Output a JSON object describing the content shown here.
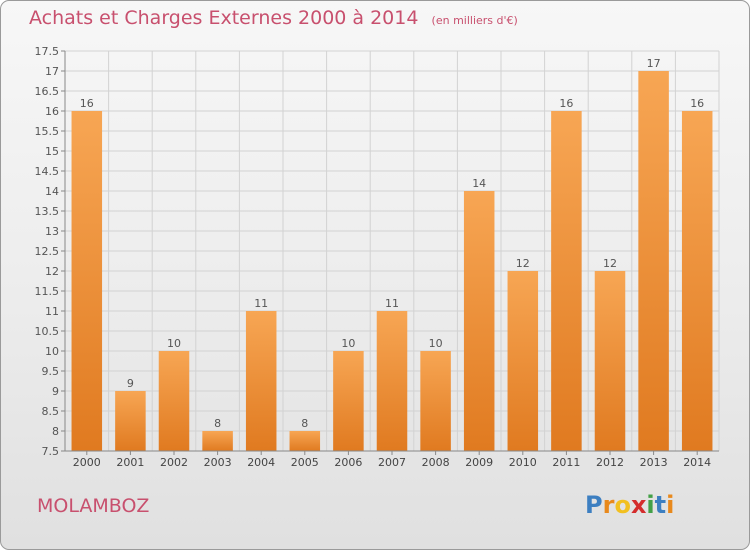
{
  "chart_data": {
    "type": "bar",
    "title": "Achats et Charges Externes 2000 à 2014",
    "subtitle": "(en milliers d'€)",
    "categories": [
      "2000",
      "2001",
      "2002",
      "2003",
      "2004",
      "2005",
      "2006",
      "2007",
      "2008",
      "2009",
      "2010",
      "2011",
      "2012",
      "2013",
      "2014"
    ],
    "values": [
      16,
      9,
      10,
      8,
      11,
      8,
      10,
      11,
      10,
      14,
      12,
      16,
      12,
      17,
      16
    ],
    "data_labels": [
      "16",
      "9",
      "10",
      "8",
      "11",
      "8",
      "10",
      "11",
      "10",
      "14",
      "12",
      "16",
      "12",
      "17",
      "16"
    ],
    "ylim": [
      7.5,
      17.5
    ],
    "ytick_step": 0.5,
    "ytick_labels": [
      "7.5",
      "8",
      "8.5",
      "9",
      "9.5",
      "10",
      "10.5",
      "11",
      "11.5",
      "12",
      "12.5",
      "13",
      "13.5",
      "14",
      "14.5",
      "15",
      "15.5",
      "16",
      "16.5",
      "17",
      "17.5"
    ],
    "grid": true,
    "legend": "none",
    "bar_color_light": "#f7a654",
    "bar_color_dark": "#e07a20"
  },
  "footer": {
    "commune": "MOLAMBOZ",
    "logo_letters": [
      "P",
      "r",
      "o",
      "x",
      "i",
      "t",
      "i"
    ],
    "logo_colors": [
      "#3d7fc1",
      "#e8891c",
      "#f2c020",
      "#d42c2c",
      "#43a047",
      "#3d7fc1",
      "#e8891c"
    ]
  }
}
